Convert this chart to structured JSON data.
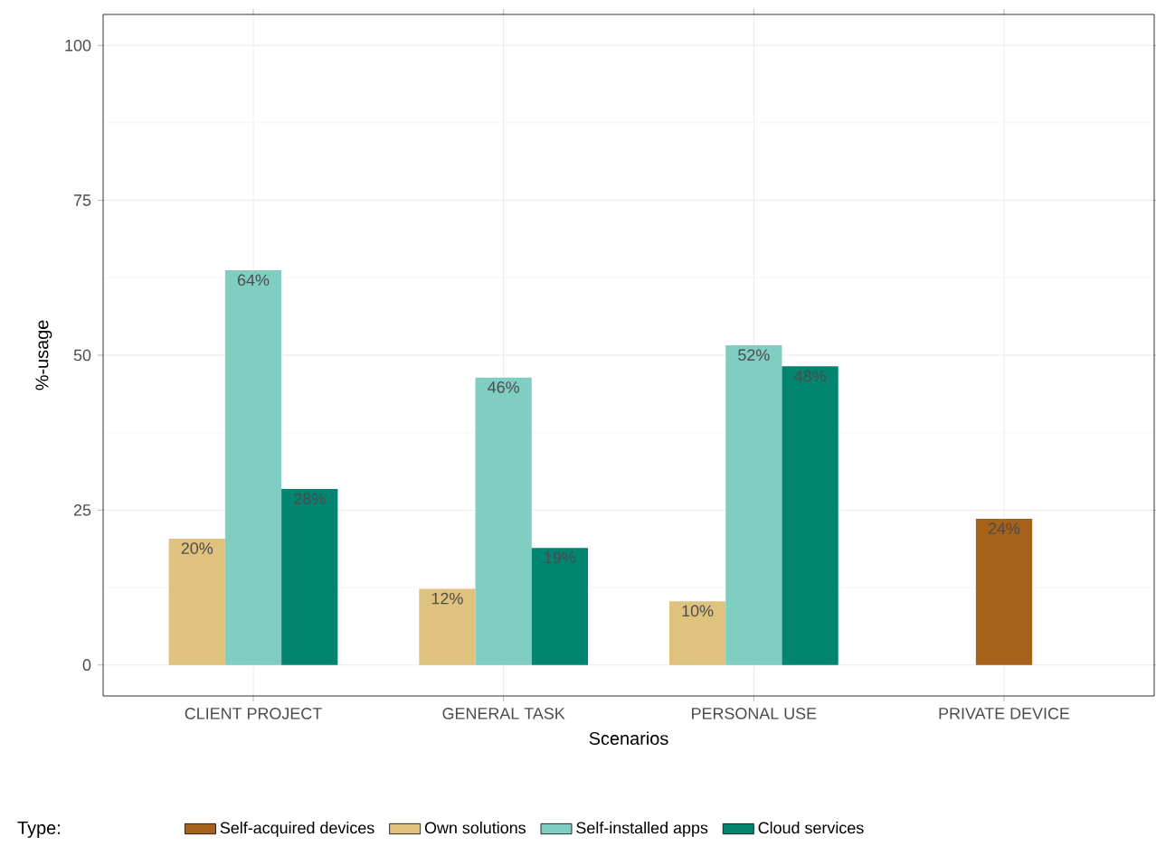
{
  "chart_data": {
    "type": "bar",
    "xlabel": "Scenarios",
    "ylabel": "%-usage",
    "legend_title": "Type:",
    "categories": [
      "CLIENT PROJECT",
      "GENERAL TASK",
      "PERSONAL USE",
      "PRIVATE DEVICE"
    ],
    "series": [
      {
        "name": "Self-acquired devices",
        "color": "#a6611a",
        "values": [
          null,
          null,
          null,
          23.6
        ],
        "value_labels": [
          null,
          null,
          null,
          "24%"
        ]
      },
      {
        "name": "Own solutions",
        "color": "#dfc27d",
        "values": [
          20.4,
          12.3,
          10.3,
          null
        ],
        "value_labels": [
          "20%",
          "12%",
          "10%",
          null
        ]
      },
      {
        "name": "Self-installed apps",
        "color": "#80cdc1",
        "values": [
          63.7,
          46.4,
          51.6,
          null
        ],
        "value_labels": [
          "64%",
          "46%",
          "52%",
          null
        ]
      },
      {
        "name": "Cloud services",
        "color": "#018571",
        "values": [
          28.4,
          18.9,
          48.2,
          null
        ],
        "value_labels": [
          "28%",
          "19%",
          "48%",
          null
        ]
      }
    ],
    "ylim": [
      -5,
      105
    ],
    "yticks": [
      0,
      25,
      50,
      75,
      100
    ],
    "grid": true,
    "legend": "bottom"
  }
}
